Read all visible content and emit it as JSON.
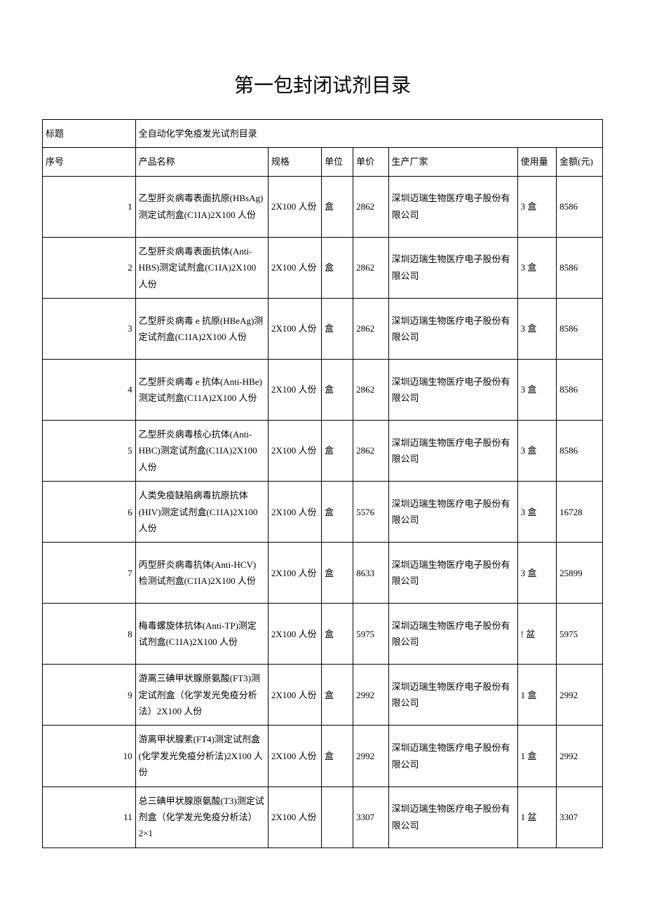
{
  "page_title": "第一包封闭试剂目录",
  "title_label": "标题",
  "title_value": "全自动化学免疫发光试剂目录",
  "columns": {
    "seq": "序号",
    "name": "产品名称",
    "spec": "规格",
    "unit": "单位",
    "price": "单价",
    "mfr": "生产厂家",
    "usage": "使用量",
    "amount": "金额(元)"
  },
  "rows": [
    {
      "seq": "1",
      "name": "乙型肝炎病毒表面抗原(HBsAg)测定试剂盒(C1IA)2X100 人份",
      "spec": "2X100 人份",
      "unit": "盒",
      "price": "2862",
      "mfr": "深圳迈瑞生物医疗电子股份有限公司",
      "usage": "3 盒",
      "amount": "8586"
    },
    {
      "seq": "2",
      "name": "乙型肝炎病毒表面抗体(Anti-HBS)测定试剂盒(C1IA)2X100 人份",
      "spec": "2X100 人份",
      "unit": "盒",
      "price": "2862",
      "mfr": "深圳迈瑞生物医疗电子股份有限公司",
      "usage": "3 盒",
      "amount": "8586"
    },
    {
      "seq": "3",
      "name": "乙型肝炎病毒 e 抗原(HBeAg)测定试剂盒(C1IA)2X100 人份",
      "spec": "2X100 人份",
      "unit": "盒",
      "price": "2862",
      "mfr": "深圳迈瑞生物医疗电子股份有限公司",
      "usage": "3 盒",
      "amount": "8586"
    },
    {
      "seq": "4",
      "name": "乙型肝炎病毒 e 抗体(Anti-HBe)测定试剂盒(C11A)2X100 人份",
      "spec": "2X100 人份",
      "unit": "盒",
      "price": "2862",
      "mfr": "深圳迈瑞生物医疗电子股份有限公司",
      "usage": "3 盒",
      "amount": "8586"
    },
    {
      "seq": "5",
      "name": "乙型肝炎病毒核心抗体(Anti-HBC)测定试剂盒(C1IA)2X100 人份",
      "spec": "2X100 人份",
      "unit": "盒",
      "price": "2862",
      "mfr": "深圳迈瑞生物医疗电子股份有限公司",
      "usage": "3 盒",
      "amount": "8586"
    },
    {
      "seq": "6",
      "name": "人类免疫缺陷病毒抗原抗体(HIV)测定试剂盒(C1IA)2X100 人份",
      "spec": "2X100 人份",
      "unit": "盒",
      "price": "5576",
      "mfr": "深圳迈瑞生物医疗电子股份有限公司",
      "usage": "3 盒",
      "amount": "16728"
    },
    {
      "seq": "7",
      "name": "丙型肝炎病毒抗体(Anti-HCV)检测试剂盒(C1IA)2X100 人份",
      "spec": "2X100 人份",
      "unit": "盒",
      "price": "8633",
      "mfr": "深圳迈瑞生物医疗电子股份有限公司",
      "usage": "3 盒",
      "amount": "25899"
    },
    {
      "seq": "8",
      "name": "梅毒螺旋体抗体(Anti-TP)测定试剂盒(C1IA)2X100 人份",
      "spec": "2X100 人份",
      "unit": "盒",
      "price": "5975",
      "mfr": "深圳迈瑞生物医疗电子股份有限公司",
      "usage": "! 盆",
      "amount": "5975"
    },
    {
      "seq": "9",
      "name": "游离三碘甲状腺原氨酸(FT3)测定试剂盒（化学发光免疫分析法）2X100 人份",
      "spec": "2X100 人份",
      "unit": "盒",
      "price": "2992",
      "mfr": "深圳迈瑞生物医疗电子股份有限公司",
      "usage": "1 盒",
      "amount": "2992"
    },
    {
      "seq": "10",
      "name": "游离甲状腺素(FT4)测定试剂盒(化学发光免疫分析法)2X100 人份",
      "spec": "2X100 人份",
      "unit": "盒",
      "price": "2992",
      "mfr": "深圳迈瑞生物医疗电子股份有限公司",
      "usage": "1 盒",
      "amount": "2992"
    },
    {
      "seq": "11",
      "name": "总三碘甲状腺原氨酸(T3)测定试剂盒（化学发光免疫分析法）2×1",
      "spec": "2X100 人份",
      "unit": "",
      "price": "3307",
      "mfr": "深圳迈瑞生物医疗电子股份有限公司",
      "usage": "1 盆",
      "amount": "3307"
    }
  ]
}
